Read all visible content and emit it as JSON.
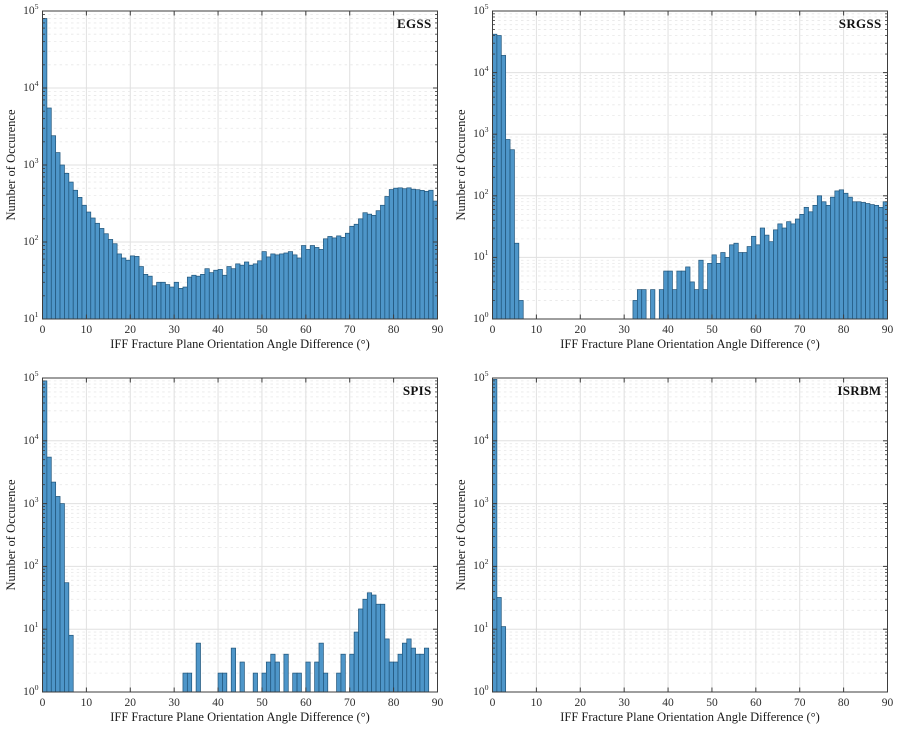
{
  "figure": {
    "background": "#ffffff",
    "layout": "2x2 histogram grid",
    "bar_fill": "#4e96c9",
    "bar_edge": "#1f5378",
    "grid_major_color": "#e0e0e0",
    "grid_minor_color": "#e8e8e8",
    "axis_color": "#3d3d3d"
  },
  "chart_data": [
    {
      "id": "egss",
      "type": "bar",
      "title": "EGSS",
      "xlabel": "IFF Fracture Plane Orientation Angle Difference (°)",
      "ylabel": "Number of Occurence",
      "xlim": [
        0,
        90
      ],
      "xticks": [
        0,
        10,
        20,
        30,
        40,
        50,
        60,
        70,
        80,
        90
      ],
      "yscale": "log",
      "ylim": [
        10,
        100000
      ],
      "yticks": [
        "10^1",
        "10^2",
        "10^3",
        "10^4",
        "10^5"
      ],
      "grid": true,
      "legend": null,
      "bin_width": 1,
      "bins": [
        [
          0,
          80000
        ],
        [
          1,
          5500
        ],
        [
          2,
          2400
        ],
        [
          3,
          1450
        ],
        [
          4,
          1000
        ],
        [
          5,
          780
        ],
        [
          6,
          600
        ],
        [
          7,
          470
        ],
        [
          8,
          380
        ],
        [
          9,
          300
        ],
        [
          10,
          245
        ],
        [
          11,
          205
        ],
        [
          12,
          175
        ],
        [
          13,
          150
        ],
        [
          14,
          128
        ],
        [
          15,
          108
        ],
        [
          16,
          95
        ],
        [
          17,
          70
        ],
        [
          18,
          62
        ],
        [
          19,
          58
        ],
        [
          20,
          66
        ],
        [
          21,
          65
        ],
        [
          22,
          48
        ],
        [
          23,
          38
        ],
        [
          24,
          36
        ],
        [
          25,
          27
        ],
        [
          26,
          30
        ],
        [
          27,
          30
        ],
        [
          28,
          28
        ],
        [
          29,
          26
        ],
        [
          30,
          30
        ],
        [
          31,
          25
        ],
        [
          32,
          26
        ],
        [
          33,
          35
        ],
        [
          34,
          37
        ],
        [
          35,
          36
        ],
        [
          36,
          38
        ],
        [
          37,
          45
        ],
        [
          38,
          40
        ],
        [
          39,
          43
        ],
        [
          40,
          44
        ],
        [
          41,
          37
        ],
        [
          42,
          48
        ],
        [
          43,
          45
        ],
        [
          44,
          52
        ],
        [
          45,
          50
        ],
        [
          46,
          55
        ],
        [
          47,
          50
        ],
        [
          48,
          52
        ],
        [
          49,
          57
        ],
        [
          50,
          75
        ],
        [
          51,
          64
        ],
        [
          52,
          70
        ],
        [
          53,
          68
        ],
        [
          54,
          70
        ],
        [
          55,
          72
        ],
        [
          56,
          75
        ],
        [
          57,
          68
        ],
        [
          58,
          62
        ],
        [
          59,
          90
        ],
        [
          60,
          80
        ],
        [
          61,
          90
        ],
        [
          62,
          85
        ],
        [
          63,
          80
        ],
        [
          64,
          110
        ],
        [
          65,
          118
        ],
        [
          66,
          113
        ],
        [
          67,
          120
        ],
        [
          68,
          115
        ],
        [
          69,
          130
        ],
        [
          70,
          160
        ],
        [
          71,
          170
        ],
        [
          72,
          200
        ],
        [
          73,
          240
        ],
        [
          74,
          230
        ],
        [
          75,
          222
        ],
        [
          76,
          255
        ],
        [
          77,
          300
        ],
        [
          78,
          390
        ],
        [
          79,
          480
        ],
        [
          80,
          500
        ],
        [
          81,
          505
        ],
        [
          82,
          492
        ],
        [
          83,
          505
        ],
        [
          84,
          485
        ],
        [
          85,
          478
        ],
        [
          86,
          468
        ],
        [
          87,
          455
        ],
        [
          88,
          470
        ],
        [
          89,
          340
        ]
      ]
    },
    {
      "id": "srgss",
      "type": "bar",
      "title": "SRGSS",
      "xlabel": "IFF Fracture Plane Orientation Angle Difference (°)",
      "ylabel": "Number of Occurence",
      "xlim": [
        0,
        90
      ],
      "xticks": [
        0,
        10,
        20,
        30,
        40,
        50,
        60,
        70,
        80,
        90
      ],
      "yscale": "log",
      "ylim": [
        1,
        100000
      ],
      "yticks": [
        "10^0",
        "10^1",
        "10^2",
        "10^3",
        "10^4",
        "10^5"
      ],
      "grid": true,
      "legend": null,
      "bin_width": 1,
      "bins": [
        [
          0,
          42000
        ],
        [
          1,
          40000
        ],
        [
          2,
          19000
        ],
        [
          3,
          820
        ],
        [
          4,
          560
        ],
        [
          5,
          17
        ],
        [
          6,
          2
        ],
        [
          32,
          2
        ],
        [
          33,
          3
        ],
        [
          34,
          3
        ],
        [
          36,
          3
        ],
        [
          38,
          3
        ],
        [
          39,
          6
        ],
        [
          40,
          6
        ],
        [
          41,
          3
        ],
        [
          42,
          6
        ],
        [
          43,
          6
        ],
        [
          44,
          7
        ],
        [
          45,
          4
        ],
        [
          46,
          3
        ],
        [
          47,
          9
        ],
        [
          48,
          3
        ],
        [
          49,
          8
        ],
        [
          50,
          11
        ],
        [
          51,
          8
        ],
        [
          52,
          12
        ],
        [
          53,
          10
        ],
        [
          54,
          16
        ],
        [
          55,
          17
        ],
        [
          56,
          12
        ],
        [
          57,
          12
        ],
        [
          58,
          15
        ],
        [
          59,
          22
        ],
        [
          60,
          16
        ],
        [
          61,
          30
        ],
        [
          62,
          23
        ],
        [
          63,
          18
        ],
        [
          64,
          28
        ],
        [
          65,
          35
        ],
        [
          66,
          30
        ],
        [
          67,
          38
        ],
        [
          68,
          35
        ],
        [
          69,
          42
        ],
        [
          70,
          50
        ],
        [
          71,
          65
        ],
        [
          72,
          55
        ],
        [
          73,
          70
        ],
        [
          74,
          100
        ],
        [
          75,
          80
        ],
        [
          76,
          70
        ],
        [
          77,
          95
        ],
        [
          78,
          120
        ],
        [
          79,
          125
        ],
        [
          80,
          110
        ],
        [
          81,
          95
        ],
        [
          82,
          80
        ],
        [
          83,
          80
        ],
        [
          84,
          78
        ],
        [
          85,
          75
        ],
        [
          86,
          72
        ],
        [
          87,
          70
        ],
        [
          88,
          65
        ],
        [
          89,
          80
        ]
      ]
    },
    {
      "id": "spis",
      "type": "bar",
      "title": "SPIS",
      "xlabel": "IFF Fracture Plane Orientation Angle Difference (°)",
      "ylabel": "Number of Occurence",
      "xlim": [
        0,
        90
      ],
      "xticks": [
        0,
        10,
        20,
        30,
        40,
        50,
        60,
        70,
        80,
        90
      ],
      "yscale": "log",
      "ylim": [
        1,
        100000
      ],
      "yticks": [
        "10^0",
        "10^1",
        "10^2",
        "10^3",
        "10^4",
        "10^5"
      ],
      "grid": true,
      "legend": null,
      "bin_width": 1,
      "bins": [
        [
          0,
          90000
        ],
        [
          1,
          5500
        ],
        [
          2,
          2200
        ],
        [
          3,
          1300
        ],
        [
          4,
          1000
        ],
        [
          5,
          55
        ],
        [
          6,
          8
        ],
        [
          32,
          2
        ],
        [
          33,
          2
        ],
        [
          35,
          6
        ],
        [
          40,
          2
        ],
        [
          41,
          2
        ],
        [
          43,
          5
        ],
        [
          45,
          3
        ],
        [
          48,
          2
        ],
        [
          50,
          2
        ],
        [
          51,
          3
        ],
        [
          52,
          4
        ],
        [
          53,
          3
        ],
        [
          55,
          4
        ],
        [
          57,
          2
        ],
        [
          58,
          2
        ],
        [
          60,
          3
        ],
        [
          62,
          3
        ],
        [
          63,
          6
        ],
        [
          64,
          2
        ],
        [
          67,
          2
        ],
        [
          68,
          4
        ],
        [
          70,
          4
        ],
        [
          71,
          9
        ],
        [
          72,
          21
        ],
        [
          73,
          30
        ],
        [
          74,
          38
        ],
        [
          75,
          35
        ],
        [
          76,
          25
        ],
        [
          77,
          25
        ],
        [
          78,
          7
        ],
        [
          79,
          3
        ],
        [
          80,
          3
        ],
        [
          81,
          4
        ],
        [
          82,
          6
        ],
        [
          83,
          7
        ],
        [
          84,
          5
        ],
        [
          85,
          4
        ],
        [
          86,
          4
        ],
        [
          87,
          5
        ]
      ]
    },
    {
      "id": "isrbm",
      "type": "bar",
      "title": "ISRBM",
      "xlabel": "IFF Fracture Plane Orientation Angle Difference (°)",
      "ylabel": "Number of Occurence",
      "xlim": [
        0,
        90
      ],
      "xticks": [
        0,
        10,
        20,
        30,
        40,
        50,
        60,
        70,
        80,
        90
      ],
      "yscale": "log",
      "ylim": [
        1,
        100000
      ],
      "yticks": [
        "10^0",
        "10^1",
        "10^2",
        "10^3",
        "10^4",
        "10^5"
      ],
      "grid": true,
      "legend": null,
      "bin_width": 1,
      "bins": [
        [
          0,
          95000
        ],
        [
          1,
          32
        ],
        [
          2,
          11
        ]
      ]
    }
  ]
}
